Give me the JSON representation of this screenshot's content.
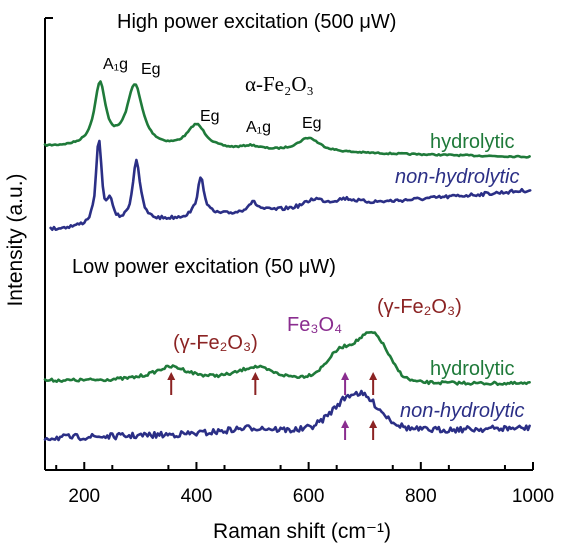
{
  "chart_data": {
    "type": "line",
    "xlabel": "Raman shift (cm⁻¹)",
    "ylabel": "Intensity (a.u.)",
    "xlim": [
      130,
      1000
    ],
    "x_ticks": [
      200,
      400,
      600,
      800,
      1000
    ],
    "y_ticks_visible": false,
    "grid": false,
    "panels": [
      {
        "title": "High power excitation (500 μW)",
        "compound_label": "α-Fe₂O₃",
        "peak_labels": [
          {
            "text": "A₁g",
            "x": 228
          },
          {
            "text": "Eg",
            "x": 290
          },
          {
            "text": "Eg",
            "x": 400
          },
          {
            "text": "A₁g",
            "x": 497
          },
          {
            "text": "Eg",
            "x": 600
          }
        ],
        "series": [
          {
            "name": "hydrolytic",
            "color": "#1f7a3a",
            "style": "normal"
          },
          {
            "name": "non-hydrolytic",
            "color": "#2b2f86",
            "style": "italic"
          }
        ]
      },
      {
        "title": "Low power excitation (50 μW)",
        "phase_labels": [
          {
            "text": "(γ-Fe₂O₃)",
            "color": "#8b2323"
          },
          {
            "text": "Fe₃O₄",
            "color": "#8a2d8f"
          },
          {
            "text": "(γ-Fe₂O₃)",
            "color": "#8b2323"
          }
        ],
        "arrows": [
          {
            "x": 355,
            "series": "hydrolytic",
            "color": "#8b2323"
          },
          {
            "x": 505,
            "series": "hydrolytic",
            "color": "#8b2323"
          },
          {
            "x": 665,
            "series": "hydrolytic",
            "color": "#8a2d8f"
          },
          {
            "x": 715,
            "series": "hydrolytic",
            "color": "#8b2323"
          },
          {
            "x": 665,
            "series": "non-hydrolytic",
            "color": "#8a2d8f"
          },
          {
            "x": 715,
            "series": "non-hydrolytic",
            "color": "#8b2323"
          }
        ],
        "series": [
          {
            "name": "hydrolytic",
            "color": "#1f7a3a",
            "style": "normal"
          },
          {
            "name": "non-hydrolytic",
            "color": "#2b2f86",
            "style": "italic"
          }
        ]
      }
    ]
  }
}
